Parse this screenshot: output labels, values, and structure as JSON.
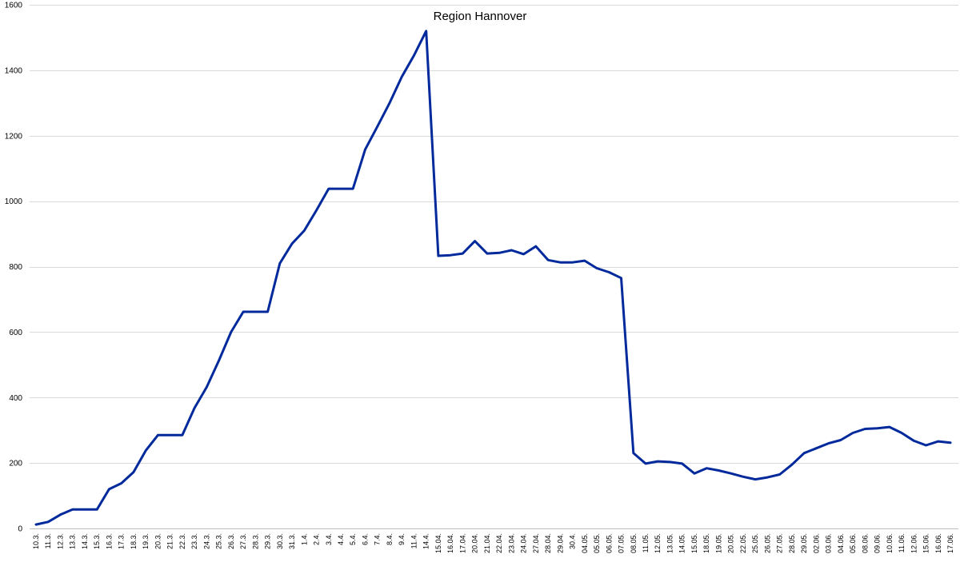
{
  "chart_data": {
    "type": "line",
    "title": "Region Hannover",
    "xlabel": "",
    "ylabel": "",
    "ylim": [
      0,
      1600
    ],
    "yticks": [
      0,
      200,
      400,
      600,
      800,
      1000,
      1200,
      1400,
      1600
    ],
    "grid": true,
    "legend": "none",
    "colors": {
      "line": "#00299b",
      "grid": "#d9d9d9",
      "axis": "#bfbfbf"
    },
    "categories": [
      "10.3.",
      "11.3.",
      "12.3.",
      "13.3.",
      "14.3.",
      "15.3.",
      "16.3.",
      "17.3.",
      "18.3.",
      "19.3.",
      "20.3.",
      "21.3.",
      "22.3.",
      "23.3.",
      "24.3.",
      "25.3.",
      "26.3.",
      "27.3.",
      "28.3.",
      "29.3.",
      "30.3.",
      "31.3.",
      "1.4.",
      "2.4.",
      "3.4.",
      "4.4.",
      "5.4.",
      "6.4.",
      "7.4.",
      "8.4.",
      "9.4.",
      "11.4.",
      "14.4.",
      "15.04.",
      "16.04.",
      "17.04.",
      "20.04.",
      "21.04.",
      "22.04.",
      "23.04.",
      "24.04.",
      "27.04.",
      "28.04.",
      "29.04.",
      "30.4.",
      "04.05.",
      "05.05.",
      "06.05.",
      "07.05.",
      "08.05.",
      "11.05.",
      "12.05.",
      "13.05.",
      "14.05.",
      "15.05.",
      "18.05.",
      "19.05.",
      "20.05.",
      "22.05.",
      "25.05.",
      "26.05.",
      "27.05.",
      "28.05.",
      "29.05.",
      "02.06.",
      "03.06.",
      "04.06.",
      "05.06.",
      "08.06.",
      "09.06.",
      "10.06.",
      "11.06.",
      "12.06.",
      "15.06.",
      "16.06.",
      "17.06."
    ],
    "series": [
      {
        "values": [
          12,
          20,
          42,
          58,
          58,
          58,
          120,
          138,
          172,
          238,
          285,
          285,
          285,
          368,
          432,
          513,
          600,
          662,
          662,
          662,
          810,
          870,
          910,
          972,
          1038,
          1038,
          1038,
          1158,
          1228,
          1300,
          1380,
          1445,
          1520,
          833,
          835,
          840,
          878,
          840,
          842,
          850,
          838,
          862,
          820,
          813,
          813,
          818,
          795,
          783,
          765,
          230,
          198,
          205,
          203,
          198,
          168,
          184,
          177,
          168,
          158,
          150,
          156,
          165,
          195,
          230,
          245,
          260,
          270,
          292,
          304,
          306,
          310,
          292,
          268,
          254,
          266,
          262
        ]
      }
    ]
  }
}
